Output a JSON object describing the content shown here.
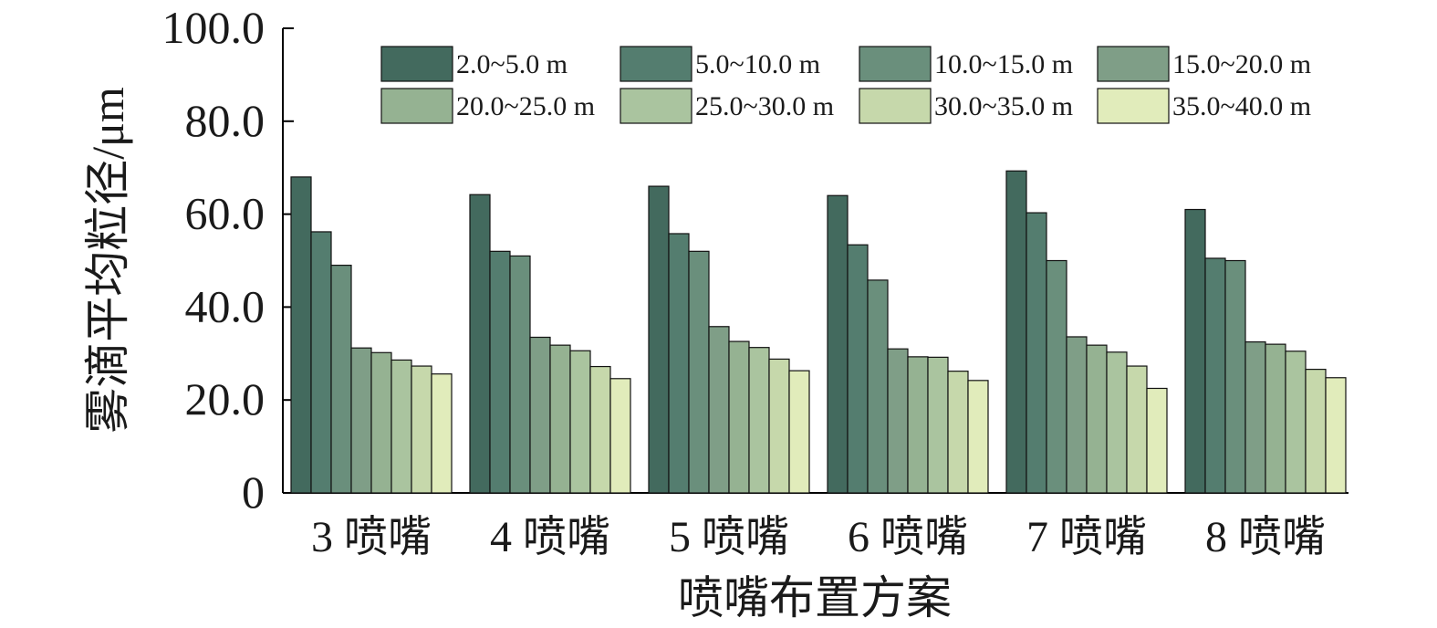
{
  "chart_data": {
    "type": "bar",
    "xlabel": "喷嘴布置方案",
    "ylabel": "雾滴平均粒径/μm",
    "ylim": [
      0,
      100
    ],
    "yticks": [
      0,
      20,
      40,
      60,
      80,
      100
    ],
    "ytick_labels": [
      "0",
      "20.0",
      "40.0",
      "60.0",
      "80.0",
      "100.0"
    ],
    "categories": [
      "3 喷嘴",
      "4 喷嘴",
      "5 喷嘴",
      "6 喷嘴",
      "7 喷嘴",
      "8 喷嘴"
    ],
    "legend_position": "top-right",
    "series": [
      {
        "name": "2.0~5.0 m",
        "color": "#436a5e",
        "values": [
          68.0,
          64.2,
          66.0,
          64.0,
          69.3,
          61.0
        ]
      },
      {
        "name": "5.0~10.0 m",
        "color": "#547d6f",
        "values": [
          56.2,
          52.0,
          55.8,
          53.4,
          60.3,
          50.5
        ]
      },
      {
        "name": "10.0~15.0 m",
        "color": "#6a8f7c",
        "values": [
          49.0,
          51.0,
          52.0,
          45.8,
          50.0,
          50.0
        ]
      },
      {
        "name": "15.0~20.0 m",
        "color": "#7f9e87",
        "values": [
          31.2,
          33.5,
          35.8,
          31.0,
          33.6,
          32.5
        ]
      },
      {
        "name": "20.0~25.0 m",
        "color": "#95b292",
        "values": [
          30.2,
          31.8,
          32.6,
          29.3,
          31.8,
          32.0
        ]
      },
      {
        "name": "25.0~30.0 m",
        "color": "#aac49f",
        "values": [
          28.6,
          30.6,
          31.3,
          29.2,
          30.3,
          30.5
        ]
      },
      {
        "name": "30.0~35.0 m",
        "color": "#c6d8ab",
        "values": [
          27.3,
          27.2,
          28.8,
          26.2,
          27.3,
          26.6
        ]
      },
      {
        "name": "35.0~40.0 m",
        "color": "#e1ecbb",
        "values": [
          25.6,
          24.6,
          26.3,
          24.2,
          22.5,
          24.8
        ]
      }
    ]
  }
}
